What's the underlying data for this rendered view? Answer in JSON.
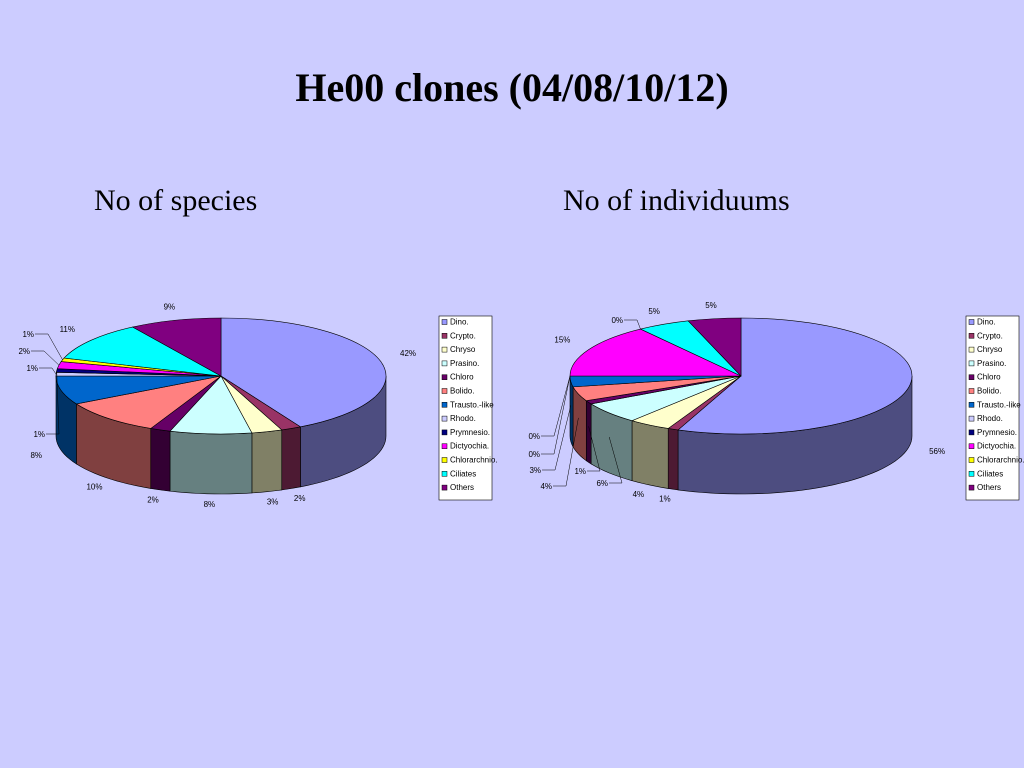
{
  "slide": {
    "title": "He00 clones (04/08/10/12)",
    "subtitle_left": "No of species",
    "subtitle_right": "No of individuums"
  },
  "legend_items": [
    "Dino.",
    "Crypto.",
    "Chryso",
    "Prasino.",
    "Chloro",
    "Bolido.",
    "Trausto.-like",
    "Rhodo.",
    "Prymnesio.",
    "Dictyochia.",
    "Chlorarchnio.",
    "Ciliates",
    "Others"
  ],
  "colors": [
    "#9999ff",
    "#993366",
    "#ffffcc",
    "#ccffff",
    "#660066",
    "#ff8080",
    "#0066cc",
    "#ccccff",
    "#000080",
    "#ff00ff",
    "#ffff00",
    "#00ffff",
    "#800080"
  ],
  "chart_data": [
    {
      "type": "pie",
      "title": "No of species",
      "categories": [
        "Dino.",
        "Crypto.",
        "Chryso",
        "Prasino.",
        "Chloro",
        "Bolido.",
        "Trausto.-like",
        "Rhodo.",
        "Prymnesio.",
        "Dictyochia.",
        "Chlorarchnio.",
        "Ciliates",
        "Others"
      ],
      "values": [
        42,
        2,
        3,
        8,
        2,
        10,
        8,
        1,
        1,
        2,
        1,
        11,
        9
      ],
      "labels": [
        "42%",
        "2%",
        "3%",
        "8%",
        "2%",
        "10%",
        "8%",
        "1%",
        "1%",
        "2%",
        "1%",
        "11%",
        "9%"
      ],
      "legend": "right"
    },
    {
      "type": "pie",
      "title": "No of individuums",
      "categories": [
        "Dino.",
        "Crypto.",
        "Chryso",
        "Prasino.",
        "Chloro",
        "Bolido.",
        "Trausto.-like",
        "Rhodo.",
        "Prymnesio.",
        "Dictyochia.",
        "Chlorarchnio.",
        "Ciliates",
        "Others"
      ],
      "values": [
        56,
        1,
        4,
        6,
        1,
        4,
        3,
        0,
        0,
        15,
        0,
        5,
        5
      ],
      "labels": [
        "56%",
        "1%",
        "4%",
        "6%",
        "1%",
        "4%",
        "3%",
        "0%",
        "0%",
        "15%",
        "0%",
        "5%",
        "5%"
      ],
      "legend": "right"
    }
  ]
}
